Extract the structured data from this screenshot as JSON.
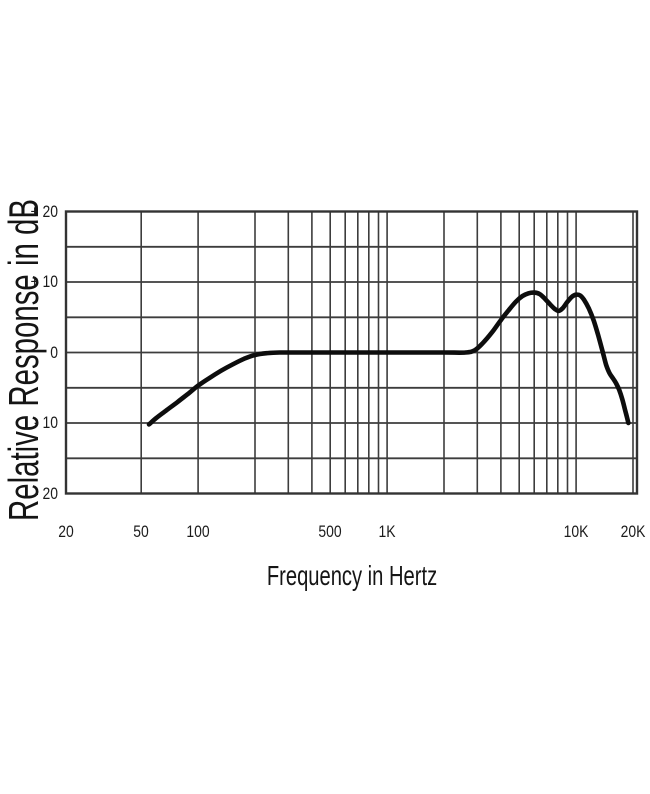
{
  "page": {
    "background": "#ffffff"
  },
  "chart": {
    "colors": {
      "background": "#ffffff",
      "grid": "#3d3d3d",
      "border": "#333333",
      "curve": "#0d0d0d",
      "text": "#1c1c1c"
    }
  },
  "chart_data": {
    "type": "line",
    "title": "",
    "xlabel": "Frequency in Hertz",
    "ylabel": "Relative Response in dB",
    "x_scale": "log",
    "xlim": [
      20,
      20000
    ],
    "ylim": [
      -20,
      20
    ],
    "grid": "on",
    "x_ticks": [
      {
        "label": "20",
        "hz": 20
      },
      {
        "label": "50",
        "hz": 50
      },
      {
        "label": "100",
        "hz": 100
      },
      {
        "label": "500",
        "hz": 500
      },
      {
        "label": "1K",
        "hz": 1000
      },
      {
        "label": "10K",
        "hz": 10000
      },
      {
        "label": "20K",
        "hz": 20000
      }
    ],
    "y_ticks": [
      {
        "label": "+ 20",
        "db": 20
      },
      {
        "label": "+ 10",
        "db": 10
      },
      {
        "label": "0",
        "db": 0
      },
      {
        "label": "- 10",
        "db": -10
      },
      {
        "label": "- 20",
        "db": -20
      }
    ],
    "x_gridlines_hz": [
      50,
      100,
      200,
      300,
      400,
      500,
      600,
      700,
      800,
      900,
      1000,
      2000,
      3000,
      4000,
      5000,
      6000,
      7000,
      8000,
      9000,
      10000,
      20000
    ],
    "y_gridlines_db": [
      20,
      15,
      10,
      5,
      0,
      -5,
      -10,
      -15,
      -20
    ],
    "series": [
      {
        "name": "relative-response",
        "points": [
          [
            55,
            -10.2
          ],
          [
            60,
            -9.3
          ],
          [
            68,
            -8.2
          ],
          [
            78,
            -7.0
          ],
          [
            90,
            -5.7
          ],
          [
            100,
            -4.7
          ],
          [
            115,
            -3.6
          ],
          [
            132,
            -2.6
          ],
          [
            152,
            -1.7
          ],
          [
            175,
            -0.9
          ],
          [
            200,
            -0.35
          ],
          [
            230,
            -0.1
          ],
          [
            270,
            0
          ],
          [
            400,
            0
          ],
          [
            700,
            0
          ],
          [
            1200,
            0
          ],
          [
            2000,
            0
          ],
          [
            2600,
            0
          ],
          [
            2900,
            0.3
          ],
          [
            3200,
            1.3
          ],
          [
            3600,
            2.9
          ],
          [
            4000,
            4.6
          ],
          [
            4400,
            6.0
          ],
          [
            4800,
            7.2
          ],
          [
            5200,
            8.0
          ],
          [
            5600,
            8.4
          ],
          [
            6000,
            8.5
          ],
          [
            6400,
            8.3
          ],
          [
            6800,
            7.7
          ],
          [
            7300,
            6.8
          ],
          [
            7700,
            6.2
          ],
          [
            8100,
            5.9
          ],
          [
            8500,
            6.3
          ],
          [
            9000,
            7.2
          ],
          [
            9500,
            7.9
          ],
          [
            10000,
            8.2
          ],
          [
            10500,
            8.1
          ],
          [
            11000,
            7.5
          ],
          [
            11700,
            6.2
          ],
          [
            12400,
            4.5
          ],
          [
            13100,
            2.4
          ],
          [
            13800,
            0.2
          ],
          [
            14400,
            -1.7
          ],
          [
            15000,
            -2.9
          ],
          [
            15700,
            -3.7
          ],
          [
            16300,
            -4.4
          ],
          [
            16900,
            -5.3
          ],
          [
            17500,
            -6.5
          ],
          [
            18100,
            -8.0
          ],
          [
            18600,
            -9.2
          ],
          [
            18900,
            -10.0
          ]
        ]
      }
    ]
  }
}
